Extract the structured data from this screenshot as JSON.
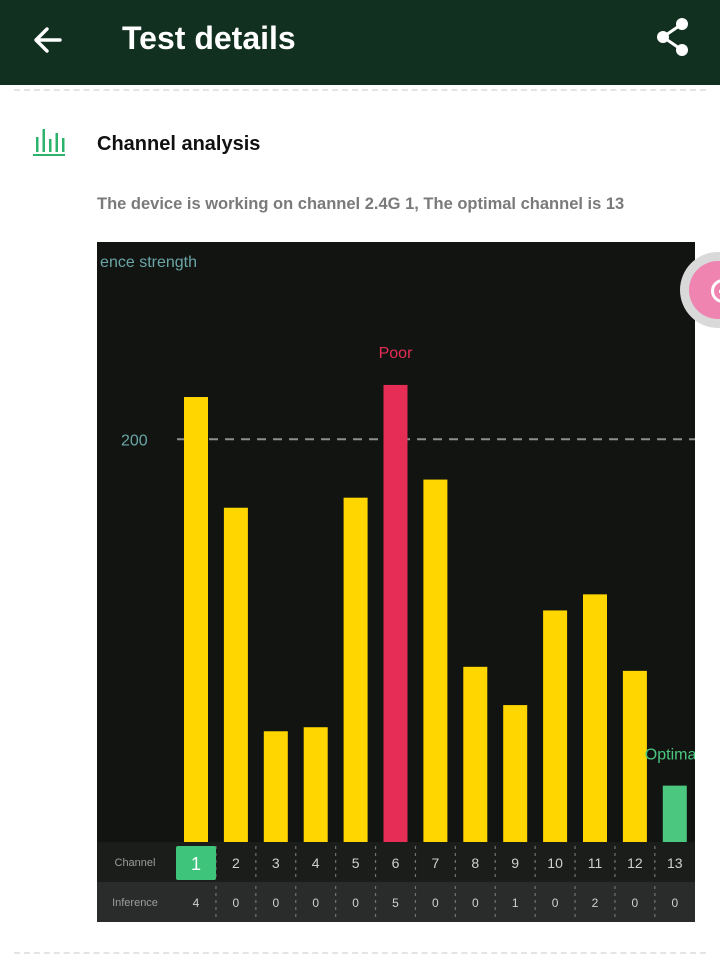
{
  "header": {
    "title": "Test details",
    "back_icon": "arrow-left-icon",
    "share_icon": "share-icon",
    "background": "#12301f"
  },
  "section": {
    "icon": "bar-chart-icon",
    "title": "Channel analysis",
    "status": "The device is working on channel 2.4G 1, The optimal channel is 13"
  },
  "chart_data": {
    "type": "bar",
    "title": "",
    "ylabel": "ence strength",
    "reference_line": {
      "label": "200",
      "value": 200
    },
    "ylim": [
      0,
      296
    ],
    "row_labels": {
      "channel": "Channel",
      "inference": "Inference"
    },
    "categories": [
      "1",
      "2",
      "3",
      "4",
      "5",
      "6",
      "7",
      "8",
      "9",
      "10",
      "11",
      "12",
      "13"
    ],
    "values": [
      221,
      166,
      55,
      57,
      171,
      227,
      180,
      87,
      68,
      115,
      123,
      85,
      28
    ],
    "inference": [
      "4",
      "0",
      "0",
      "0",
      "0",
      "5",
      "0",
      "0",
      "1",
      "0",
      "2",
      "0",
      "0"
    ],
    "annotations": {
      "poor": {
        "label": "Poor",
        "channel": "6"
      },
      "optimal": {
        "label": "Optimal",
        "channel": "13"
      }
    },
    "current_channel": "1",
    "colors": {
      "bar": "#ffd600",
      "poor": "#e62d55",
      "optimal": "#4cc780",
      "grid": "#8a8f8c",
      "axis_text": "#6aa6a6"
    }
  },
  "fab": {
    "icon": "zoom-in-icon",
    "color": "#f084b0"
  }
}
